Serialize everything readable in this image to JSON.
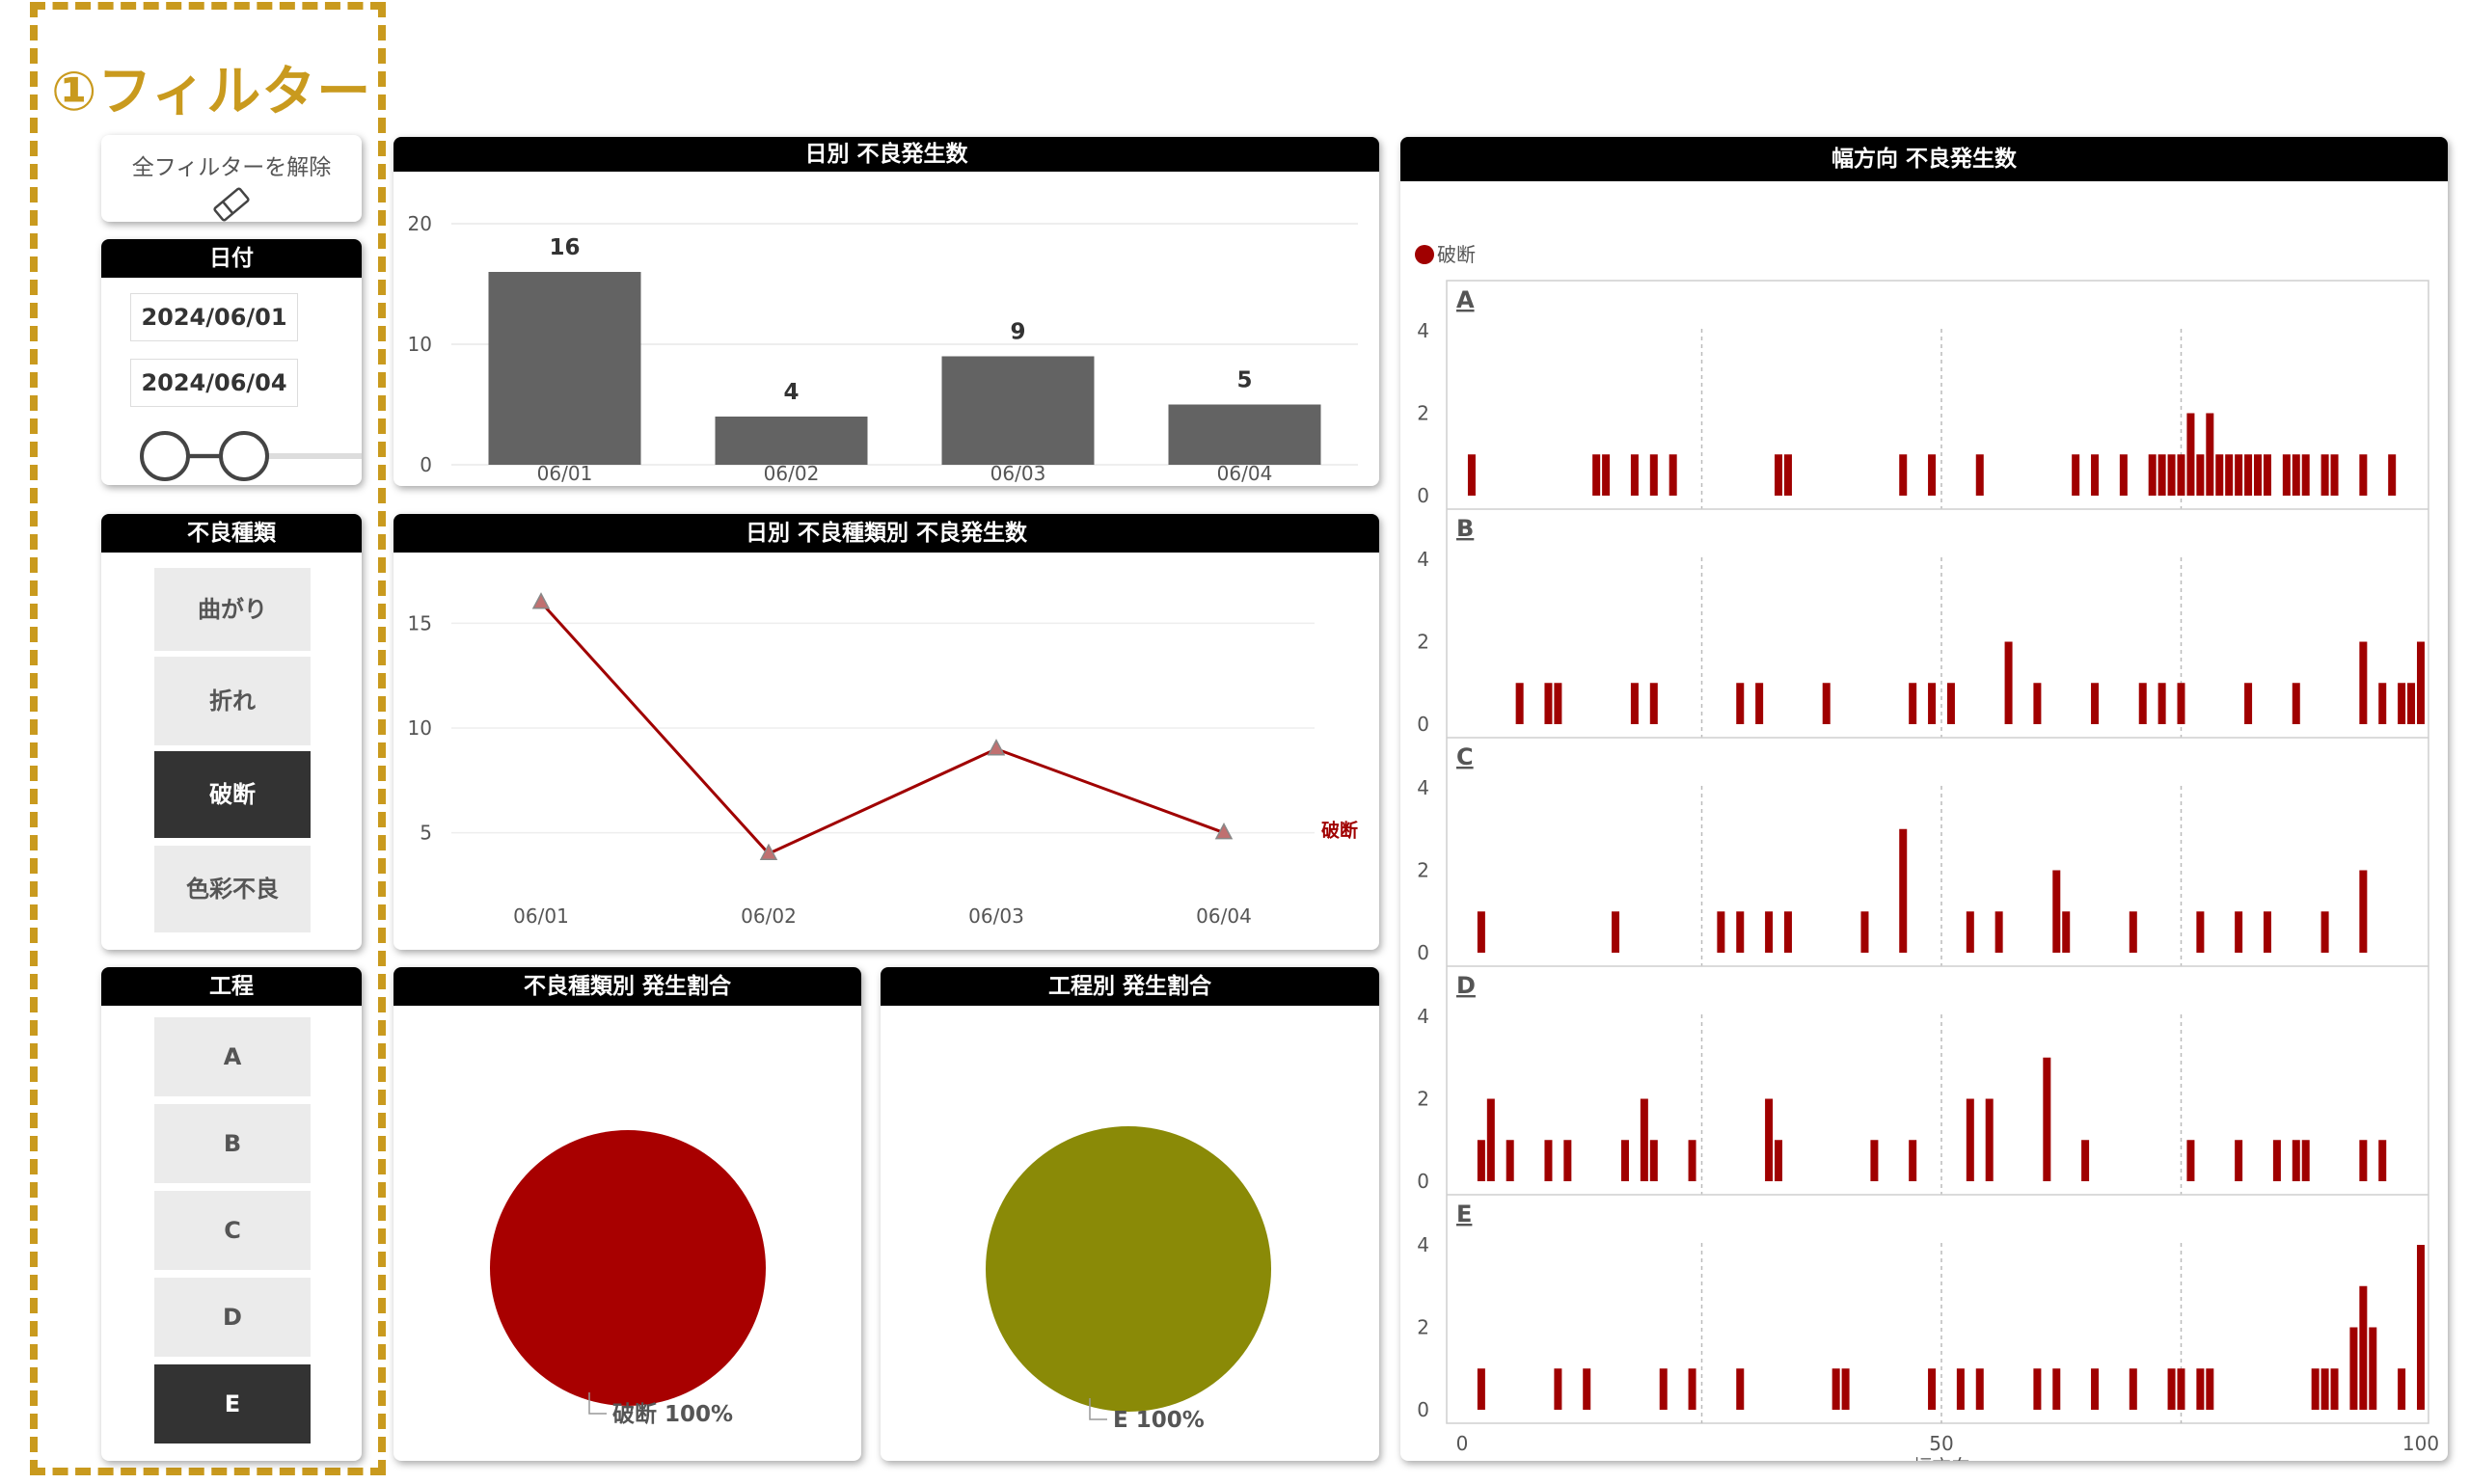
{
  "filter_title": "①フィルター",
  "clear_filters": {
    "label": "全フィルターを解除",
    "icon": "eraser-icon"
  },
  "date_filter": {
    "title": "日付",
    "start": "2024/06/01",
    "end": "2024/06/04"
  },
  "defect_filter": {
    "title": "不良種類",
    "options": [
      {
        "label": "曲がり",
        "selected": false
      },
      {
        "label": "折れ",
        "selected": false
      },
      {
        "label": "破断",
        "selected": true
      },
      {
        "label": "色彩不良",
        "selected": false
      }
    ]
  },
  "process_filter": {
    "title": "工程",
    "options": [
      {
        "label": "A",
        "selected": false
      },
      {
        "label": "B",
        "selected": false
      },
      {
        "label": "C",
        "selected": false
      },
      {
        "label": "D",
        "selected": false
      },
      {
        "label": "E",
        "selected": true
      }
    ]
  },
  "colors": {
    "accent": "#c99a1e",
    "bar": "#636363",
    "series": "#a00000",
    "pie_defect": "#a80000",
    "pie_process": "#8a8a07"
  },
  "daily_chart": {
    "title": "日別 不良発生数",
    "chart_data": {
      "type": "bar",
      "categories": [
        "06/01",
        "06/02",
        "06/03",
        "06/04"
      ],
      "values": [
        16,
        4,
        9,
        5
      ],
      "ylim": [
        0,
        20
      ],
      "yticks": [
        0,
        10,
        20
      ],
      "title": "",
      "xlabel": "",
      "ylabel": ""
    }
  },
  "daily_type_chart": {
    "title": "日別 不良種類別 不良発生数",
    "chart_data": {
      "type": "line",
      "categories": [
        "06/01",
        "06/02",
        "06/03",
        "06/04"
      ],
      "series": [
        {
          "name": "破断",
          "values": [
            16,
            4,
            9,
            5
          ]
        }
      ],
      "ylim": [
        3,
        17
      ],
      "yticks": [
        5,
        10,
        15
      ]
    }
  },
  "defect_pie": {
    "title": "不良種類別 発生割合",
    "chart_data": {
      "type": "pie",
      "slices": [
        {
          "label": "破断",
          "value": 100,
          "value_label": "100%"
        }
      ]
    }
  },
  "process_pie": {
    "title": "工程別 発生割合",
    "chart_data": {
      "type": "pie",
      "slices": [
        {
          "label": "E",
          "value": 100,
          "value_label": "100%"
        }
      ]
    }
  },
  "width_chart": {
    "title": "幅方向 不良発生数",
    "chart_data": {
      "type": "bar",
      "legend": "破断",
      "xlabel": "幅方向",
      "xlim": [
        0,
        100
      ],
      "xticks": [
        0,
        50,
        100
      ],
      "ylim": [
        0,
        4
      ],
      "yticks": [
        0,
        2,
        4
      ],
      "vlines": [
        25,
        50,
        75
      ],
      "panels": [
        {
          "name": "A",
          "x": [
            1,
            14,
            15,
            18,
            20,
            22,
            33,
            34,
            46,
            49,
            54,
            64,
            66,
            69,
            72,
            73,
            74,
            75,
            76,
            77,
            78,
            79,
            80,
            81,
            82,
            83,
            84,
            86,
            87,
            88,
            90,
            91,
            94,
            97
          ],
          "y": [
            1,
            1,
            1,
            1,
            1,
            1,
            1,
            1,
            1,
            1,
            1,
            1,
            1,
            1,
            1,
            1,
            1,
            1,
            2,
            1,
            2,
            1,
            1,
            1,
            1,
            1,
            1,
            1,
            1,
            1,
            1,
            1,
            1,
            1
          ]
        },
        {
          "name": "B",
          "x": [
            6,
            9,
            10,
            18,
            20,
            29,
            31,
            38,
            47,
            49,
            51,
            57,
            60,
            66,
            71,
            73,
            75,
            82,
            87,
            94,
            96,
            98,
            99,
            100
          ],
          "y": [
            1,
            1,
            1,
            1,
            1,
            1,
            1,
            1,
            1,
            1,
            1,
            2,
            1,
            1,
            1,
            1,
            1,
            1,
            1,
            2,
            1,
            1,
            1,
            2
          ]
        },
        {
          "name": "C",
          "x": [
            2,
            16,
            27,
            29,
            32,
            34,
            42,
            46,
            53,
            56,
            62,
            63,
            70,
            77,
            81,
            84,
            90,
            94
          ],
          "y": [
            1,
            1,
            1,
            1,
            1,
            1,
            1,
            3,
            1,
            1,
            2,
            1,
            1,
            1,
            1,
            1,
            1,
            2
          ]
        },
        {
          "name": "D",
          "x": [
            2,
            3,
            5,
            9,
            11,
            17,
            19,
            20,
            24,
            32,
            33,
            43,
            47,
            53,
            55,
            61,
            65,
            76,
            81,
            85,
            87,
            88,
            94,
            96
          ],
          "y": [
            1,
            2,
            1,
            1,
            1,
            1,
            2,
            1,
            1,
            2,
            1,
            1,
            1,
            2,
            2,
            3,
            1,
            1,
            1,
            1,
            1,
            1,
            1,
            1
          ]
        },
        {
          "name": "E",
          "x": [
            2,
            10,
            13,
            21,
            24,
            29,
            39,
            40,
            49,
            52,
            54,
            60,
            62,
            66,
            70,
            74,
            75,
            77,
            78,
            89,
            90,
            91,
            93,
            94,
            95,
            98,
            100
          ],
          "y": [
            1,
            1,
            1,
            1,
            1,
            1,
            1,
            1,
            1,
            1,
            1,
            1,
            1,
            1,
            1,
            1,
            1,
            1,
            1,
            1,
            1,
            1,
            2,
            3,
            2,
            1,
            4
          ]
        }
      ]
    }
  }
}
